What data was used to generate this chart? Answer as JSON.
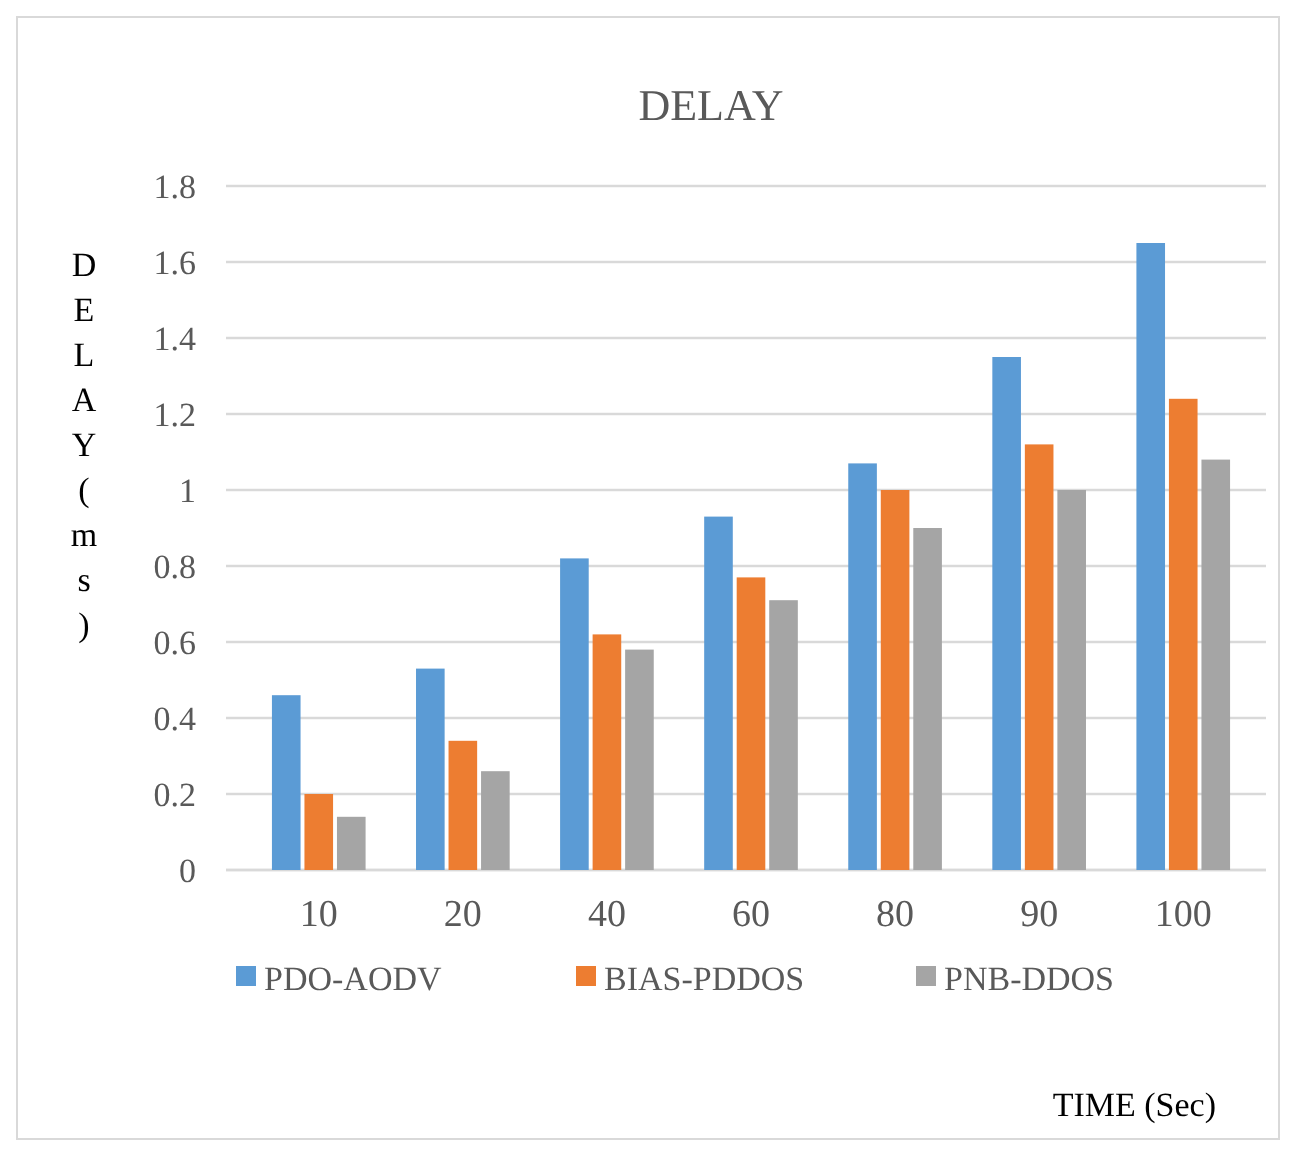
{
  "chart_data": {
    "type": "bar",
    "title": "DELAY",
    "ylabel": "DELAY(ms)",
    "xlabel": "TIME (Sec)",
    "categories": [
      "10",
      "20",
      "40",
      "60",
      "80",
      "90",
      "100"
    ],
    "series": [
      {
        "name": "PDO-AODV",
        "color": "#5b9bd5",
        "values": [
          0.46,
          0.53,
          0.82,
          0.93,
          1.07,
          1.35,
          1.65
        ]
      },
      {
        "name": "BIAS-PDDOS",
        "color": "#ed7d31",
        "values": [
          0.2,
          0.34,
          0.62,
          0.77,
          1.0,
          1.12,
          1.24
        ]
      },
      {
        "name": "PNB-DDOS",
        "color": "#a5a5a5",
        "values": [
          0.14,
          0.26,
          0.58,
          0.71,
          0.9,
          1.0,
          1.08
        ]
      }
    ],
    "ylim": [
      0,
      1.8
    ],
    "yticks": [
      0,
      0.2,
      0.4,
      0.6,
      0.8,
      1,
      1.2,
      1.4,
      1.6,
      1.8
    ],
    "grid": "y",
    "legend": "bottom"
  }
}
